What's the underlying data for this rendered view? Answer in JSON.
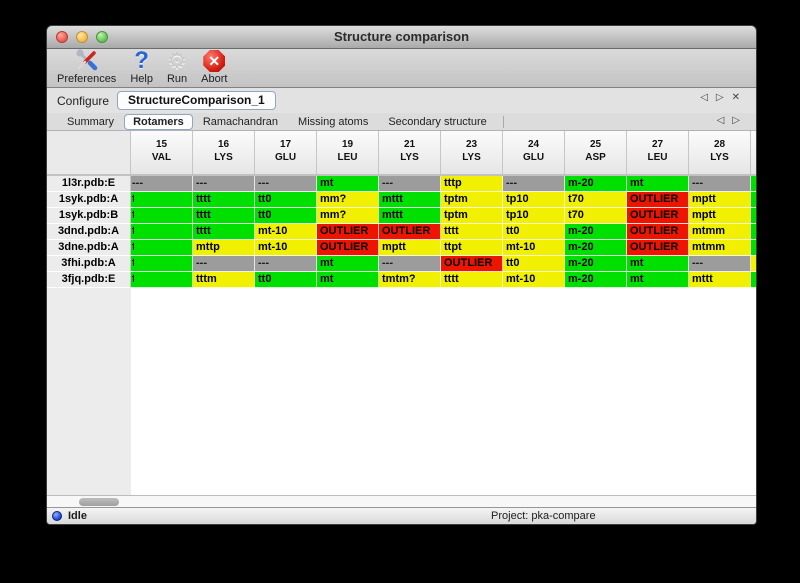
{
  "window": {
    "title": "Structure comparison"
  },
  "toolbar": {
    "items": [
      {
        "label": "Preferences",
        "icon": "tools-icon"
      },
      {
        "label": "Help",
        "icon": "help-icon"
      },
      {
        "label": "Run",
        "icon": "gear-icon"
      },
      {
        "label": "Abort",
        "icon": "abort-icon"
      }
    ],
    "help_glyph": "?",
    "gear_glyph": "⚙",
    "abort_glyph": "✕"
  },
  "configure": {
    "label": "Configure",
    "selected_config": "StructureComparison_1"
  },
  "icons": {
    "left_arrow": "◁",
    "right_arrow": "▷",
    "close": "✕"
  },
  "tabs": [
    {
      "label": "Summary",
      "selected": false
    },
    {
      "label": "Rotamers",
      "selected": true
    },
    {
      "label": "Ramachandran",
      "selected": false
    },
    {
      "label": "Missing atoms",
      "selected": false
    },
    {
      "label": "Secondary structure",
      "selected": false
    }
  ],
  "table": {
    "columns": [
      {
        "num": "15",
        "res": "VAL"
      },
      {
        "num": "16",
        "res": "LYS"
      },
      {
        "num": "17",
        "res": "GLU"
      },
      {
        "num": "19",
        "res": "LEU"
      },
      {
        "num": "21",
        "res": "LYS"
      },
      {
        "num": "23",
        "res": "LYS"
      },
      {
        "num": "24",
        "res": "GLU"
      },
      {
        "num": "25",
        "res": "ASP"
      },
      {
        "num": "27",
        "res": "LEU"
      },
      {
        "num": "28",
        "res": "LYS"
      }
    ],
    "rows": [
      {
        "name": "1l3r.pdb:E",
        "cells": [
          {
            "text": "---",
            "color": "gray"
          },
          {
            "text": "---",
            "color": "gray"
          },
          {
            "text": "---",
            "color": "gray"
          },
          {
            "text": "mt",
            "color": "green"
          },
          {
            "text": "---",
            "color": "gray"
          },
          {
            "text": "tttp",
            "color": "yellow"
          },
          {
            "text": "---",
            "color": "gray"
          },
          {
            "text": "m-20",
            "color": "green"
          },
          {
            "text": "mt",
            "color": "green"
          },
          {
            "text": "---",
            "color": "gray"
          }
        ]
      },
      {
        "name": "1syk.pdb:A",
        "cells": [
          {
            "text": "t",
            "color": "green",
            "clipped": true
          },
          {
            "text": "tttt",
            "color": "green"
          },
          {
            "text": "tt0",
            "color": "green"
          },
          {
            "text": "mm?",
            "color": "yellow"
          },
          {
            "text": "mttt",
            "color": "green"
          },
          {
            "text": "tptm",
            "color": "yellow"
          },
          {
            "text": "tp10",
            "color": "yellow"
          },
          {
            "text": "t70",
            "color": "yellow"
          },
          {
            "text": "OUTLIER",
            "color": "red"
          },
          {
            "text": "mptt",
            "color": "yellow"
          }
        ]
      },
      {
        "name": "1syk.pdb:B",
        "cells": [
          {
            "text": "t",
            "color": "green",
            "clipped": true
          },
          {
            "text": "tttt",
            "color": "green"
          },
          {
            "text": "tt0",
            "color": "green"
          },
          {
            "text": "mm?",
            "color": "yellow"
          },
          {
            "text": "mttt",
            "color": "green"
          },
          {
            "text": "tptm",
            "color": "yellow"
          },
          {
            "text": "tp10",
            "color": "yellow"
          },
          {
            "text": "t70",
            "color": "yellow"
          },
          {
            "text": "OUTLIER",
            "color": "red"
          },
          {
            "text": "mptt",
            "color": "yellow"
          }
        ]
      },
      {
        "name": "3dnd.pdb:A",
        "cells": [
          {
            "text": "t",
            "color": "green",
            "clipped": true
          },
          {
            "text": "tttt",
            "color": "green"
          },
          {
            "text": "mt-10",
            "color": "yellow"
          },
          {
            "text": "OUTLIER",
            "color": "red"
          },
          {
            "text": "OUTLIER",
            "color": "red"
          },
          {
            "text": "tttt",
            "color": "yellow"
          },
          {
            "text": "tt0",
            "color": "yellow"
          },
          {
            "text": "m-20",
            "color": "green"
          },
          {
            "text": "OUTLIER",
            "color": "red"
          },
          {
            "text": "mtmm",
            "color": "yellow"
          }
        ]
      },
      {
        "name": "3dne.pdb:A",
        "cells": [
          {
            "text": "t",
            "color": "green",
            "clipped": true
          },
          {
            "text": "mttp",
            "color": "yellow"
          },
          {
            "text": "mt-10",
            "color": "yellow"
          },
          {
            "text": "OUTLIER",
            "color": "red"
          },
          {
            "text": "mptt",
            "color": "yellow"
          },
          {
            "text": "ttpt",
            "color": "yellow"
          },
          {
            "text": "mt-10",
            "color": "yellow"
          },
          {
            "text": "m-20",
            "color": "green"
          },
          {
            "text": "OUTLIER",
            "color": "red"
          },
          {
            "text": "mtmm",
            "color": "yellow"
          }
        ]
      },
      {
        "name": "3fhi.pdb:A",
        "cells": [
          {
            "text": "t",
            "color": "green",
            "clipped": true
          },
          {
            "text": "---",
            "color": "gray"
          },
          {
            "text": "---",
            "color": "gray"
          },
          {
            "text": "mt",
            "color": "green"
          },
          {
            "text": "---",
            "color": "gray"
          },
          {
            "text": "OUTLIER",
            "color": "red"
          },
          {
            "text": "tt0",
            "color": "yellow"
          },
          {
            "text": "m-20",
            "color": "green"
          },
          {
            "text": "mt",
            "color": "green"
          },
          {
            "text": "---",
            "color": "gray"
          }
        ]
      },
      {
        "name": "3fjq.pdb:E",
        "cells": [
          {
            "text": "t",
            "color": "green",
            "clipped": true
          },
          {
            "text": "tttm",
            "color": "yellow"
          },
          {
            "text": "tt0",
            "color": "green"
          },
          {
            "text": "mt",
            "color": "green"
          },
          {
            "text": "tmtm?",
            "color": "yellow"
          },
          {
            "text": "tttt",
            "color": "yellow"
          },
          {
            "text": "mt-10",
            "color": "yellow"
          },
          {
            "text": "m-20",
            "color": "green"
          },
          {
            "text": "mt",
            "color": "green"
          },
          {
            "text": "mttt",
            "color": "yellow"
          }
        ]
      }
    ],
    "partial_column_colors": [
      "green",
      "green",
      "green",
      "green",
      "green",
      "yellow",
      "green"
    ]
  },
  "statusbar": {
    "status": "Idle",
    "project": "Project: pka-compare"
  },
  "colors": {
    "green": "#00e000",
    "yellow": "#f0f000",
    "red": "#ee1500",
    "gray": "#9c9c9c"
  }
}
